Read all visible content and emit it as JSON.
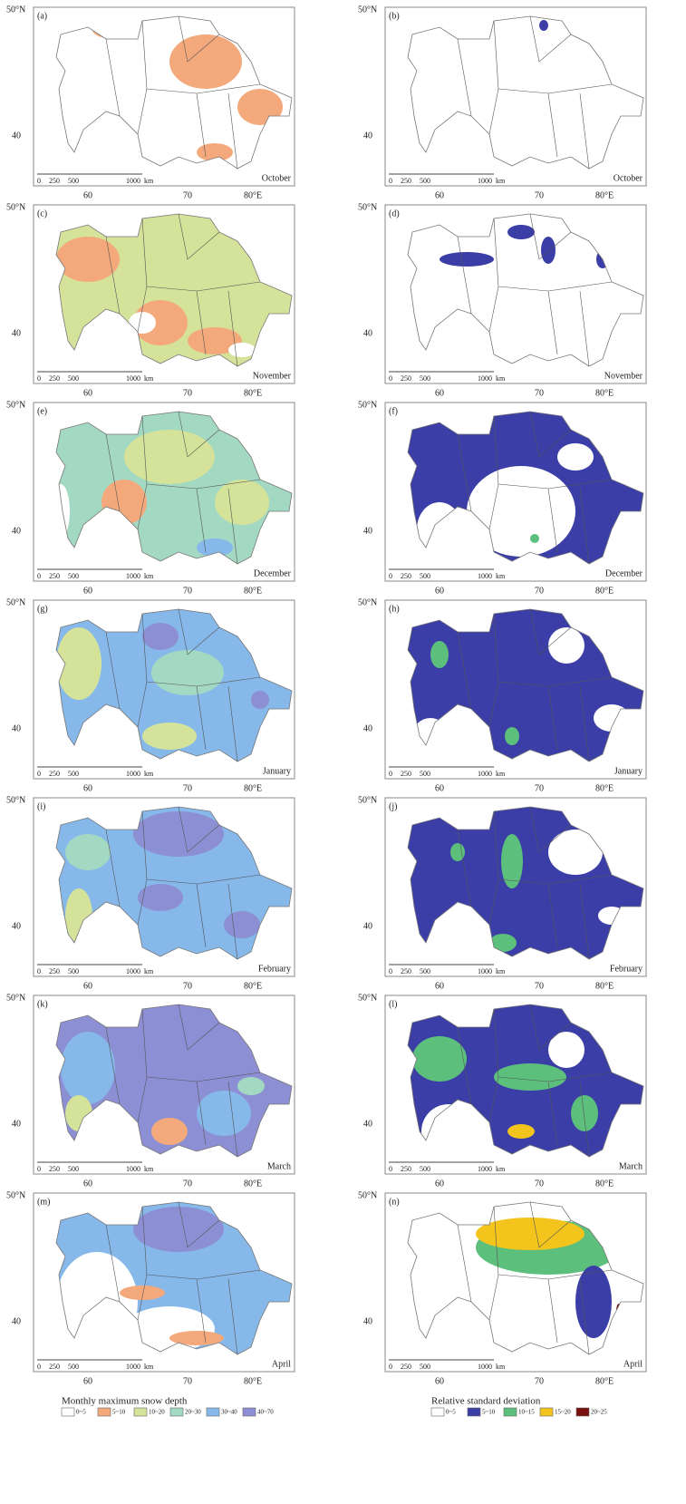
{
  "panels": [
    {
      "label": "(a)",
      "month": "October"
    },
    {
      "label": "(b)",
      "month": "October"
    },
    {
      "label": "(c)",
      "month": "November"
    },
    {
      "label": "(d)",
      "month": "November"
    },
    {
      "label": "(e)",
      "month": "December"
    },
    {
      "label": "(f)",
      "month": "December"
    },
    {
      "label": "(g)",
      "month": "January"
    },
    {
      "label": "(h)",
      "month": "January"
    },
    {
      "label": "(i)",
      "month": "February"
    },
    {
      "label": "(j)",
      "month": "February"
    },
    {
      "label": "(k)",
      "month": "March"
    },
    {
      "label": "(l)",
      "month": "March"
    },
    {
      "label": "(m)",
      "month": "April"
    },
    {
      "label": "(n)",
      "month": "April"
    }
  ],
  "axis_labels": {
    "lat": [
      "50°N",
      "40"
    ],
    "lon": [
      "60",
      "70",
      "80°E"
    ]
  },
  "scale_bar": [
    "0",
    "250",
    "500",
    "1000",
    "km"
  ],
  "legends": [
    {
      "title": "Monthly maximum snow depth",
      "items": [
        {
          "label": "0~5",
          "color": "#ffffff"
        },
        {
          "label": "5~10",
          "color": "#f4a97c"
        },
        {
          "label": "10~20",
          "color": "#d5e39a"
        },
        {
          "label": "20~30",
          "color": "#a3d9c3"
        },
        {
          "label": "30~40",
          "color": "#86b8ea"
        },
        {
          "label": "40~70",
          "color": "#8d8fd4"
        }
      ]
    },
    {
      "title": "Relative standard deviation",
      "items": [
        {
          "label": "0~5",
          "color": "#ffffff"
        },
        {
          "label": "5~10",
          "color": "#3a3ea6"
        },
        {
          "label": "10~15",
          "color": "#5cbf7c"
        },
        {
          "label": "15~20",
          "color": "#f2c41c"
        },
        {
          "label": "20~25",
          "color": "#7a1010"
        }
      ]
    }
  ]
}
